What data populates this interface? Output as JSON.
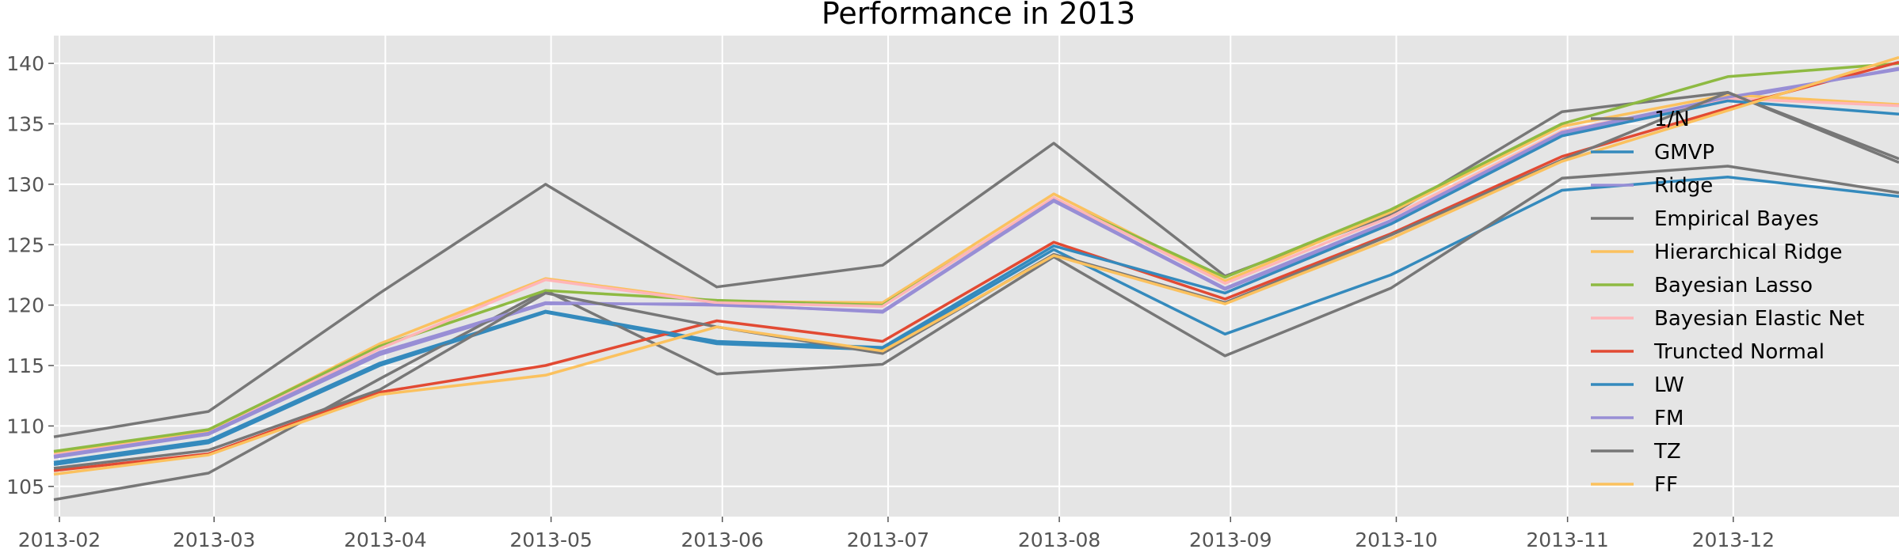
{
  "chart_data": {
    "type": "line",
    "title": "Performance in 2013",
    "xlabel": "",
    "ylabel": "",
    "x": [
      "2013-01-31",
      "2013-02-28",
      "2013-03-31",
      "2013-04-30",
      "2013-05-31",
      "2013-06-30",
      "2013-07-31",
      "2013-08-31",
      "2013-09-30",
      "2013-10-31",
      "2013-11-30",
      "2013-12-31"
    ],
    "xticks": [
      "2013-02",
      "2013-03",
      "2013-04",
      "2013-05",
      "2013-06",
      "2013-07",
      "2013-08",
      "2013-09",
      "2013-10",
      "2013-11",
      "2013-12"
    ],
    "xlim": [
      "2013-01-31",
      "2013-12-31"
    ],
    "ylim": [
      102.5,
      142.3
    ],
    "yticks": [
      105,
      110,
      115,
      120,
      125,
      130,
      135,
      140
    ],
    "grid": true,
    "legend_position": "right",
    "series": [
      {
        "name": "1/N",
        "color": "#777777",
        "values": [
          109.1,
          111.2,
          121.0,
          130.0,
          121.5,
          123.3,
          133.4,
          122.4,
          127.5,
          136.0,
          137.6,
          132.1
        ]
      },
      {
        "name": "GMVP",
        "color": "#348ABD",
        "values": [
          106.8,
          108.6,
          115.0,
          119.4,
          116.8,
          116.3,
          124.6,
          117.6,
          122.5,
          129.5,
          130.6,
          129.0
        ]
      },
      {
        "name": "Ridge",
        "color": "#988ED5",
        "values": [
          107.4,
          109.3,
          115.9,
          120.1,
          120.1,
          119.4,
          128.6,
          121.3,
          126.8,
          134.2,
          137.0,
          139.6
        ]
      },
      {
        "name": "Empirical Bayes",
        "color": "#777777",
        "values": [
          103.9,
          106.1,
          113.9,
          121.2,
          114.3,
          115.1,
          124.0,
          115.8,
          121.4,
          130.5,
          131.5,
          129.3
        ]
      },
      {
        "name": "Hierarchical Ridge",
        "color": "#FBC15E",
        "values": [
          107.8,
          109.6,
          116.8,
          122.2,
          120.3,
          120.2,
          129.2,
          122.0,
          127.7,
          134.8,
          137.4,
          136.6
        ]
      },
      {
        "name": "Bayesian Lasso",
        "color": "#8EBA42",
        "values": [
          107.9,
          109.7,
          116.6,
          121.2,
          120.4,
          120.0,
          128.8,
          122.3,
          127.9,
          135.0,
          138.9,
          140.0
        ]
      },
      {
        "name": "Bayesian Elastic Net",
        "color": "#FFB5B8",
        "values": [
          107.6,
          109.4,
          116.4,
          122.1,
          120.2,
          119.9,
          128.9,
          121.8,
          127.3,
          134.4,
          137.1,
          136.5
        ]
      },
      {
        "name": "Truncted Normal",
        "color": "#E24A33",
        "values": [
          106.3,
          107.7,
          112.8,
          115.0,
          118.7,
          117.0,
          125.2,
          120.5,
          125.9,
          132.3,
          136.3,
          140.1
        ]
      },
      {
        "name": "LW",
        "color": "#348ABD",
        "values": [
          107.0,
          108.8,
          115.2,
          119.5,
          117.0,
          116.5,
          124.9,
          121.0,
          126.7,
          134.0,
          136.9,
          135.8
        ]
      },
      {
        "name": "FM",
        "color": "#988ED5",
        "values": [
          107.5,
          109.4,
          116.1,
          120.2,
          120.0,
          119.5,
          128.7,
          121.4,
          127.0,
          134.3,
          137.2,
          139.5
        ]
      },
      {
        "name": "TZ",
        "color": "#777777",
        "values": [
          106.5,
          108.0,
          113.0,
          121.0,
          118.2,
          116.0,
          124.2,
          120.2,
          125.8,
          132.0,
          137.6,
          131.8
        ]
      },
      {
        "name": "FF",
        "color": "#FBC15E",
        "values": [
          106.0,
          107.6,
          112.6,
          114.2,
          118.2,
          116.2,
          124.1,
          120.1,
          125.5,
          131.9,
          136.1,
          140.5
        ]
      }
    ]
  }
}
